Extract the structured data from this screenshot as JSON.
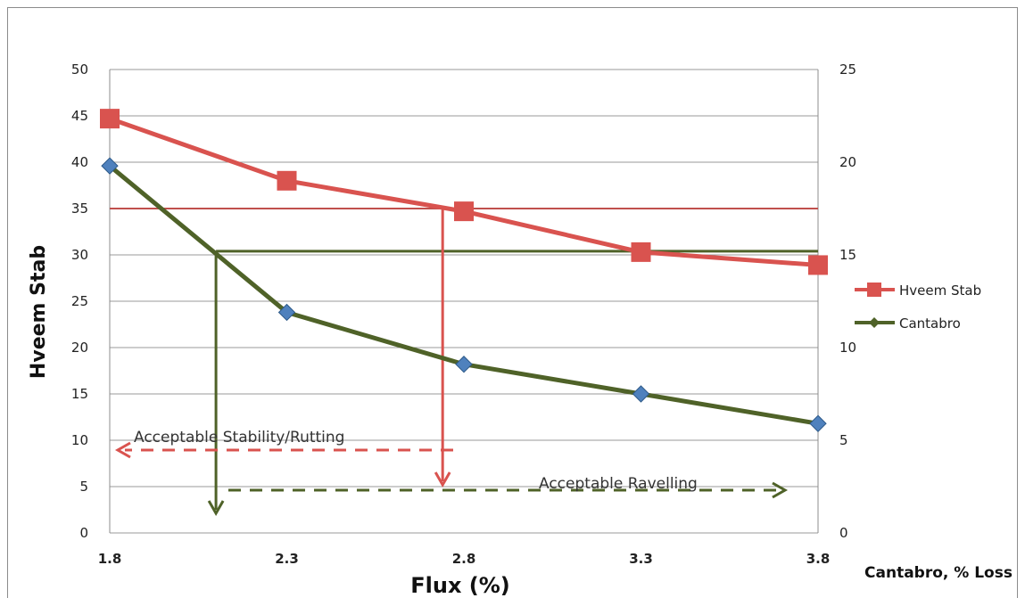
{
  "chart_data": {
    "type": "line",
    "x": [
      1.8,
      2.3,
      2.8,
      3.3,
      3.8
    ],
    "x_tick_labels": [
      "1.8",
      "2.3",
      "2.8",
      "3.3",
      "3.8"
    ],
    "xlabel": "Flux (%)",
    "ylabel": "Hveem Stab",
    "y2label": "Cantabro, % Loss",
    "ylim": [
      0,
      50
    ],
    "y_ticks": [
      "0",
      "5",
      "10",
      "15",
      "20",
      "25",
      "30",
      "35",
      "40",
      "45",
      "50"
    ],
    "y2lim": [
      0,
      25
    ],
    "y2_ticks": [
      "0",
      "5",
      "10",
      "15",
      "20",
      "25"
    ],
    "grid": true,
    "legend_position": "right",
    "series": [
      {
        "name": "Hveem Stab",
        "axis": "left",
        "color": "#d9534f",
        "marker": "square",
        "values": [
          44.7,
          38.0,
          34.7,
          30.3,
          28.9
        ]
      },
      {
        "name": "Cantabro",
        "axis": "right",
        "color": "#4f6228",
        "marker": "diamond",
        "values": [
          19.8,
          11.9,
          9.1,
          7.5,
          5.9
        ]
      }
    ],
    "threshold_lines": [
      {
        "axis": "left",
        "value": 35,
        "color": "#c0504d",
        "from_x": 1.8,
        "to_x": 3.8
      },
      {
        "axis": "right",
        "value": 15.2,
        "color": "#4f6228",
        "from_x": 2.1,
        "to_x": 3.8
      }
    ],
    "drop_lines": [
      {
        "x": 2.1,
        "color": "#4f6228"
      },
      {
        "x": 2.74,
        "color": "#d9534f"
      }
    ],
    "annotations": [
      {
        "text": "Acceptable Stability/Rutting",
        "color": "#d9534f",
        "direction": "left"
      },
      {
        "text": "Acceptable Ravelling",
        "color": "#4f6228",
        "direction": "right"
      }
    ]
  }
}
